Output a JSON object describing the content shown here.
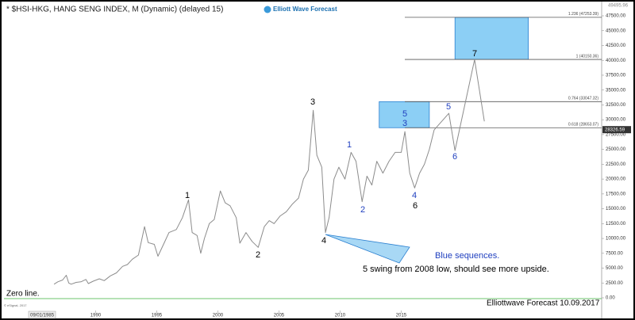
{
  "chart_data": {
    "type": "line",
    "title": "* $HSI-HKG, HANG SENG INDEX, M (Dynamic) (delayed 15)",
    "brand": "Elliott Wave Forecast",
    "top_value_label": "49495.96",
    "start_date_label": "09/01/1985",
    "copyright": "© eSignal, 2017",
    "footer": "Elliottwave Forecast  10.09.2017",
    "zero_line_label": "Zero line.",
    "note_blue": "Blue sequences.",
    "note": "5 swing from 2008 low, should see more upside.",
    "wave_labels": [
      "1",
      "2",
      "3",
      "4",
      "5",
      "3",
      "6",
      "1",
      "2",
      "4",
      "5",
      "6",
      "7"
    ],
    "series": [
      {
        "name": "HSI",
        "color": "#8c8c8c",
        "x": [
          1986.6,
          1986.9,
          1987.3,
          1987.6,
          1987.8,
          1988.0,
          1988.4,
          1988.8,
          1989.2,
          1989.4,
          1989.8,
          1990.3,
          1990.7,
          1991.2,
          1991.7,
          1992.2,
          1992.6,
          1993.0,
          1993.5,
          1994.0,
          1994.3,
          1994.8,
          1995.1,
          1995.6,
          1996.0,
          1996.6,
          1997.1,
          1997.6,
          1997.9,
          1998.3,
          1998.6,
          1998.9,
          1999.3,
          1999.7,
          2000.2,
          2000.6,
          2001.0,
          2001.5,
          2001.8,
          2002.3,
          2002.8,
          2003.3,
          2003.8,
          2004.2,
          2004.6,
          2005.1,
          2005.6,
          2006.1,
          2006.6,
          2007.0,
          2007.4,
          2007.8,
          2008.1,
          2008.5,
          2008.8,
          2009.1,
          2009.5,
          2009.9,
          2010.4,
          2010.9,
          2011.3,
          2011.8,
          2012.2,
          2012.6,
          2013.0,
          2013.5,
          2014.0,
          2014.5,
          2015.0,
          2015.3,
          2015.7,
          2016.1,
          2016.5,
          2016.9,
          2017.3,
          2017.7
        ],
        "values": [
          2300,
          2700,
          3000,
          3800,
          2500,
          2300,
          2600,
          2700,
          3100,
          2400,
          2800,
          3200,
          2900,
          3700,
          4200,
          5300,
          5600,
          6500,
          7200,
          12000,
          9300,
          9000,
          7000,
          9200,
          11000,
          11500,
          13500,
          16500,
          11000,
          10500,
          7500,
          10000,
          12500,
          13200,
          18000,
          16000,
          15500,
          13500,
          9200,
          11000,
          9500,
          8500,
          12000,
          13000,
          12500,
          13800,
          14500,
          15800,
          16800,
          20000,
          21500,
          31600,
          24000,
          22000,
          11000,
          13500,
          20000,
          22000,
          20000,
          24500,
          23000,
          16200,
          20500,
          19000,
          23000,
          21000,
          23000,
          24500,
          24500,
          28000,
          21000,
          18500,
          21000,
          22500,
          25000,
          28300
        ]
      }
    ],
    "projection": {
      "x": [
        2017.7,
        2018.9,
        2019.4,
        2021.0,
        2021.8
      ],
      "y": [
        28300,
        31070,
        24800,
        40130,
        29730
      ]
    },
    "levels": [
      {
        "value": 47253.39,
        "label": "1.236 (47253.39)"
      },
      {
        "value": 40150.36,
        "label": "1 (40150.36)"
      },
      {
        "value": 33047.32,
        "label": "0.764 (33047.32)"
      },
      {
        "value": 28653.07,
        "label": "0.618 (28653.07)"
      }
    ],
    "boxes": [
      {
        "x": [
          2013.2,
          2017.3
        ],
        "y": [
          28653.07,
          33047.32
        ]
      },
      {
        "x": [
          2019.4,
          2025.4
        ],
        "y": [
          40150.36,
          47253.39
        ]
      }
    ],
    "last_price": {
      "value": 28326.59,
      "label": "28326.59"
    },
    "xlim": [
      1982.5,
      2031.4
    ],
    "xticks": [
      1990,
      1995,
      2000,
      2005,
      2010,
      2015
    ],
    "ylim": [
      0,
      47500
    ],
    "yticks": [
      {
        "value": 0,
        "label": "0.00"
      },
      {
        "value": 2500,
        "label": "2500.00"
      },
      {
        "value": 5000,
        "label": "5000.00"
      },
      {
        "value": 7500,
        "label": "7500.00"
      },
      {
        "value": 10000,
        "label": "10000.00"
      },
      {
        "value": 12500,
        "label": "12500.00"
      },
      {
        "value": 15000,
        "label": "15000.00"
      },
      {
        "value": 17500,
        "label": "17500.00"
      },
      {
        "value": 20000,
        "label": "20000.00"
      },
      {
        "value": 22500,
        "label": "22500.00"
      },
      {
        "value": 25000,
        "label": "25000.00"
      },
      {
        "value": 27500,
        "label": "27500.00"
      },
      {
        "value": 30000,
        "label": "30000.00"
      },
      {
        "value": 32500,
        "label": "32500.00"
      },
      {
        "value": 35000,
        "label": "35000.00"
      },
      {
        "value": 37500,
        "label": "37500.00"
      },
      {
        "value": 40000,
        "label": "40000.00"
      },
      {
        "value": 42500,
        "label": "42500.00"
      },
      {
        "value": 45000,
        "label": "45000.00"
      },
      {
        "value": 47500,
        "label": "47500.00"
      }
    ]
  }
}
